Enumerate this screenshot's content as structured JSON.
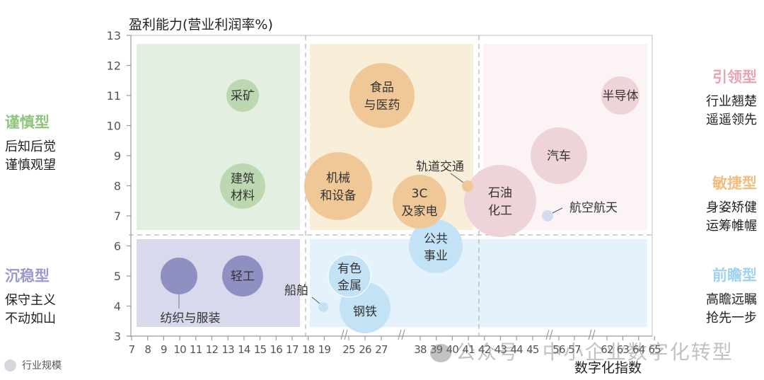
{
  "chart_data": {
    "type": "scatter",
    "subtype": "bubble",
    "title": "",
    "ylabel": "盈利能力(营业利润率%)",
    "xlabel": "数字化指数",
    "ylim": [
      3,
      13
    ],
    "yticks": [
      3,
      4,
      5,
      6,
      7,
      8,
      9,
      10,
      11,
      12,
      13
    ],
    "xticks": [
      7,
      8,
      9,
      10,
      11,
      12,
      13,
      14,
      15,
      16,
      17,
      18,
      19,
      25,
      26,
      27,
      38,
      39,
      40,
      41,
      42,
      43,
      44,
      45,
      56,
      57,
      62,
      63,
      64,
      65
    ],
    "xaxis_breaks": [
      [
        19,
        25
      ],
      [
        27,
        38
      ],
      [
        45,
        56
      ],
      [
        57,
        62
      ]
    ],
    "quadrant_dividers": {
      "x": [
        18,
        41.5
      ],
      "y": 6.4
    },
    "grid": false,
    "legend": [
      {
        "label": "行业规模",
        "meaning": "bubble size"
      }
    ],
    "series": [
      {
        "name": "谨慎型",
        "color": "#bcd8b0",
        "points": [
          {
            "label": "采矿",
            "x": 14,
            "y": 11,
            "size": 23
          },
          {
            "label": "建筑材料",
            "x": 14,
            "y": 8,
            "size": 32
          }
        ]
      },
      {
        "name": "沉稳型",
        "color": "#8f8fc2",
        "points": [
          {
            "label": "纺织与服装",
            "x": 10,
            "y": 5,
            "size": 26
          },
          {
            "label": "轻工",
            "x": 14,
            "y": 5,
            "size": 29
          }
        ]
      },
      {
        "name": "敏捷型",
        "color": "#f0c898",
        "points": [
          {
            "label": "食品与医药",
            "x": 26,
            "y": 11,
            "size": 46
          },
          {
            "label": "机械和设备",
            "x": 25,
            "y": 8,
            "size": 48
          },
          {
            "label": "3C及家电",
            "x": 38,
            "y": 7.5,
            "size": 38
          },
          {
            "label": "轨道交通",
            "x": 41,
            "y": 8,
            "size": 8
          }
        ]
      },
      {
        "name": "引领型",
        "color": "#eed3d8",
        "points": [
          {
            "label": "石油化工",
            "x": 43,
            "y": 7.5,
            "size": 51
          },
          {
            "label": "汽车",
            "x": 56,
            "y": 9,
            "size": 40
          },
          {
            "label": "半导体",
            "x": 63,
            "y": 11,
            "size": 27
          }
        ]
      },
      {
        "name": "前瞻型",
        "color": "#c4e2f6",
        "points": [
          {
            "label": "航空航天",
            "x": 56,
            "y": 7,
            "size": 8
          },
          {
            "label": "公共事业",
            "x": 39,
            "y": 6,
            "size": 38
          },
          {
            "label": "有色金属",
            "x": 25,
            "y": 5,
            "size": 30
          },
          {
            "label": "钢铁",
            "x": 26,
            "y": 4,
            "size": 36
          },
          {
            "label": "船舶",
            "x": 19,
            "y": 4,
            "size": 7
          }
        ]
      }
    ]
  },
  "axis": {
    "ylabel": "盈利能力(营业利润率%)",
    "xlabel": "数字化指数"
  },
  "quadrant_labels": {
    "cautious": {
      "title": "谨慎型",
      "line1": "后知后觉",
      "line2": "谨慎观望",
      "color": "#8fc47b"
    },
    "steady": {
      "title": "沉稳型",
      "line1": "保守主义",
      "line2": "不动如山",
      "color": "#9a9acd"
    },
    "leading": {
      "title": "引领型",
      "line1": "行业翘楚",
      "line2": "遥遥领先",
      "color": "#e8a5b0"
    },
    "agile": {
      "title": "敏捷型",
      "line1": "身姿矫健",
      "line2": "运筹帷幄",
      "color": "#efbe80"
    },
    "forward": {
      "title": "前瞻型",
      "line1": "高瞻远瞩",
      "line2": "抢先一步",
      "color": "#9fd2ef"
    }
  },
  "legend": {
    "label": "行业规模"
  },
  "watermark": {
    "text": "公众号 · 中小企业数字化转型"
  }
}
